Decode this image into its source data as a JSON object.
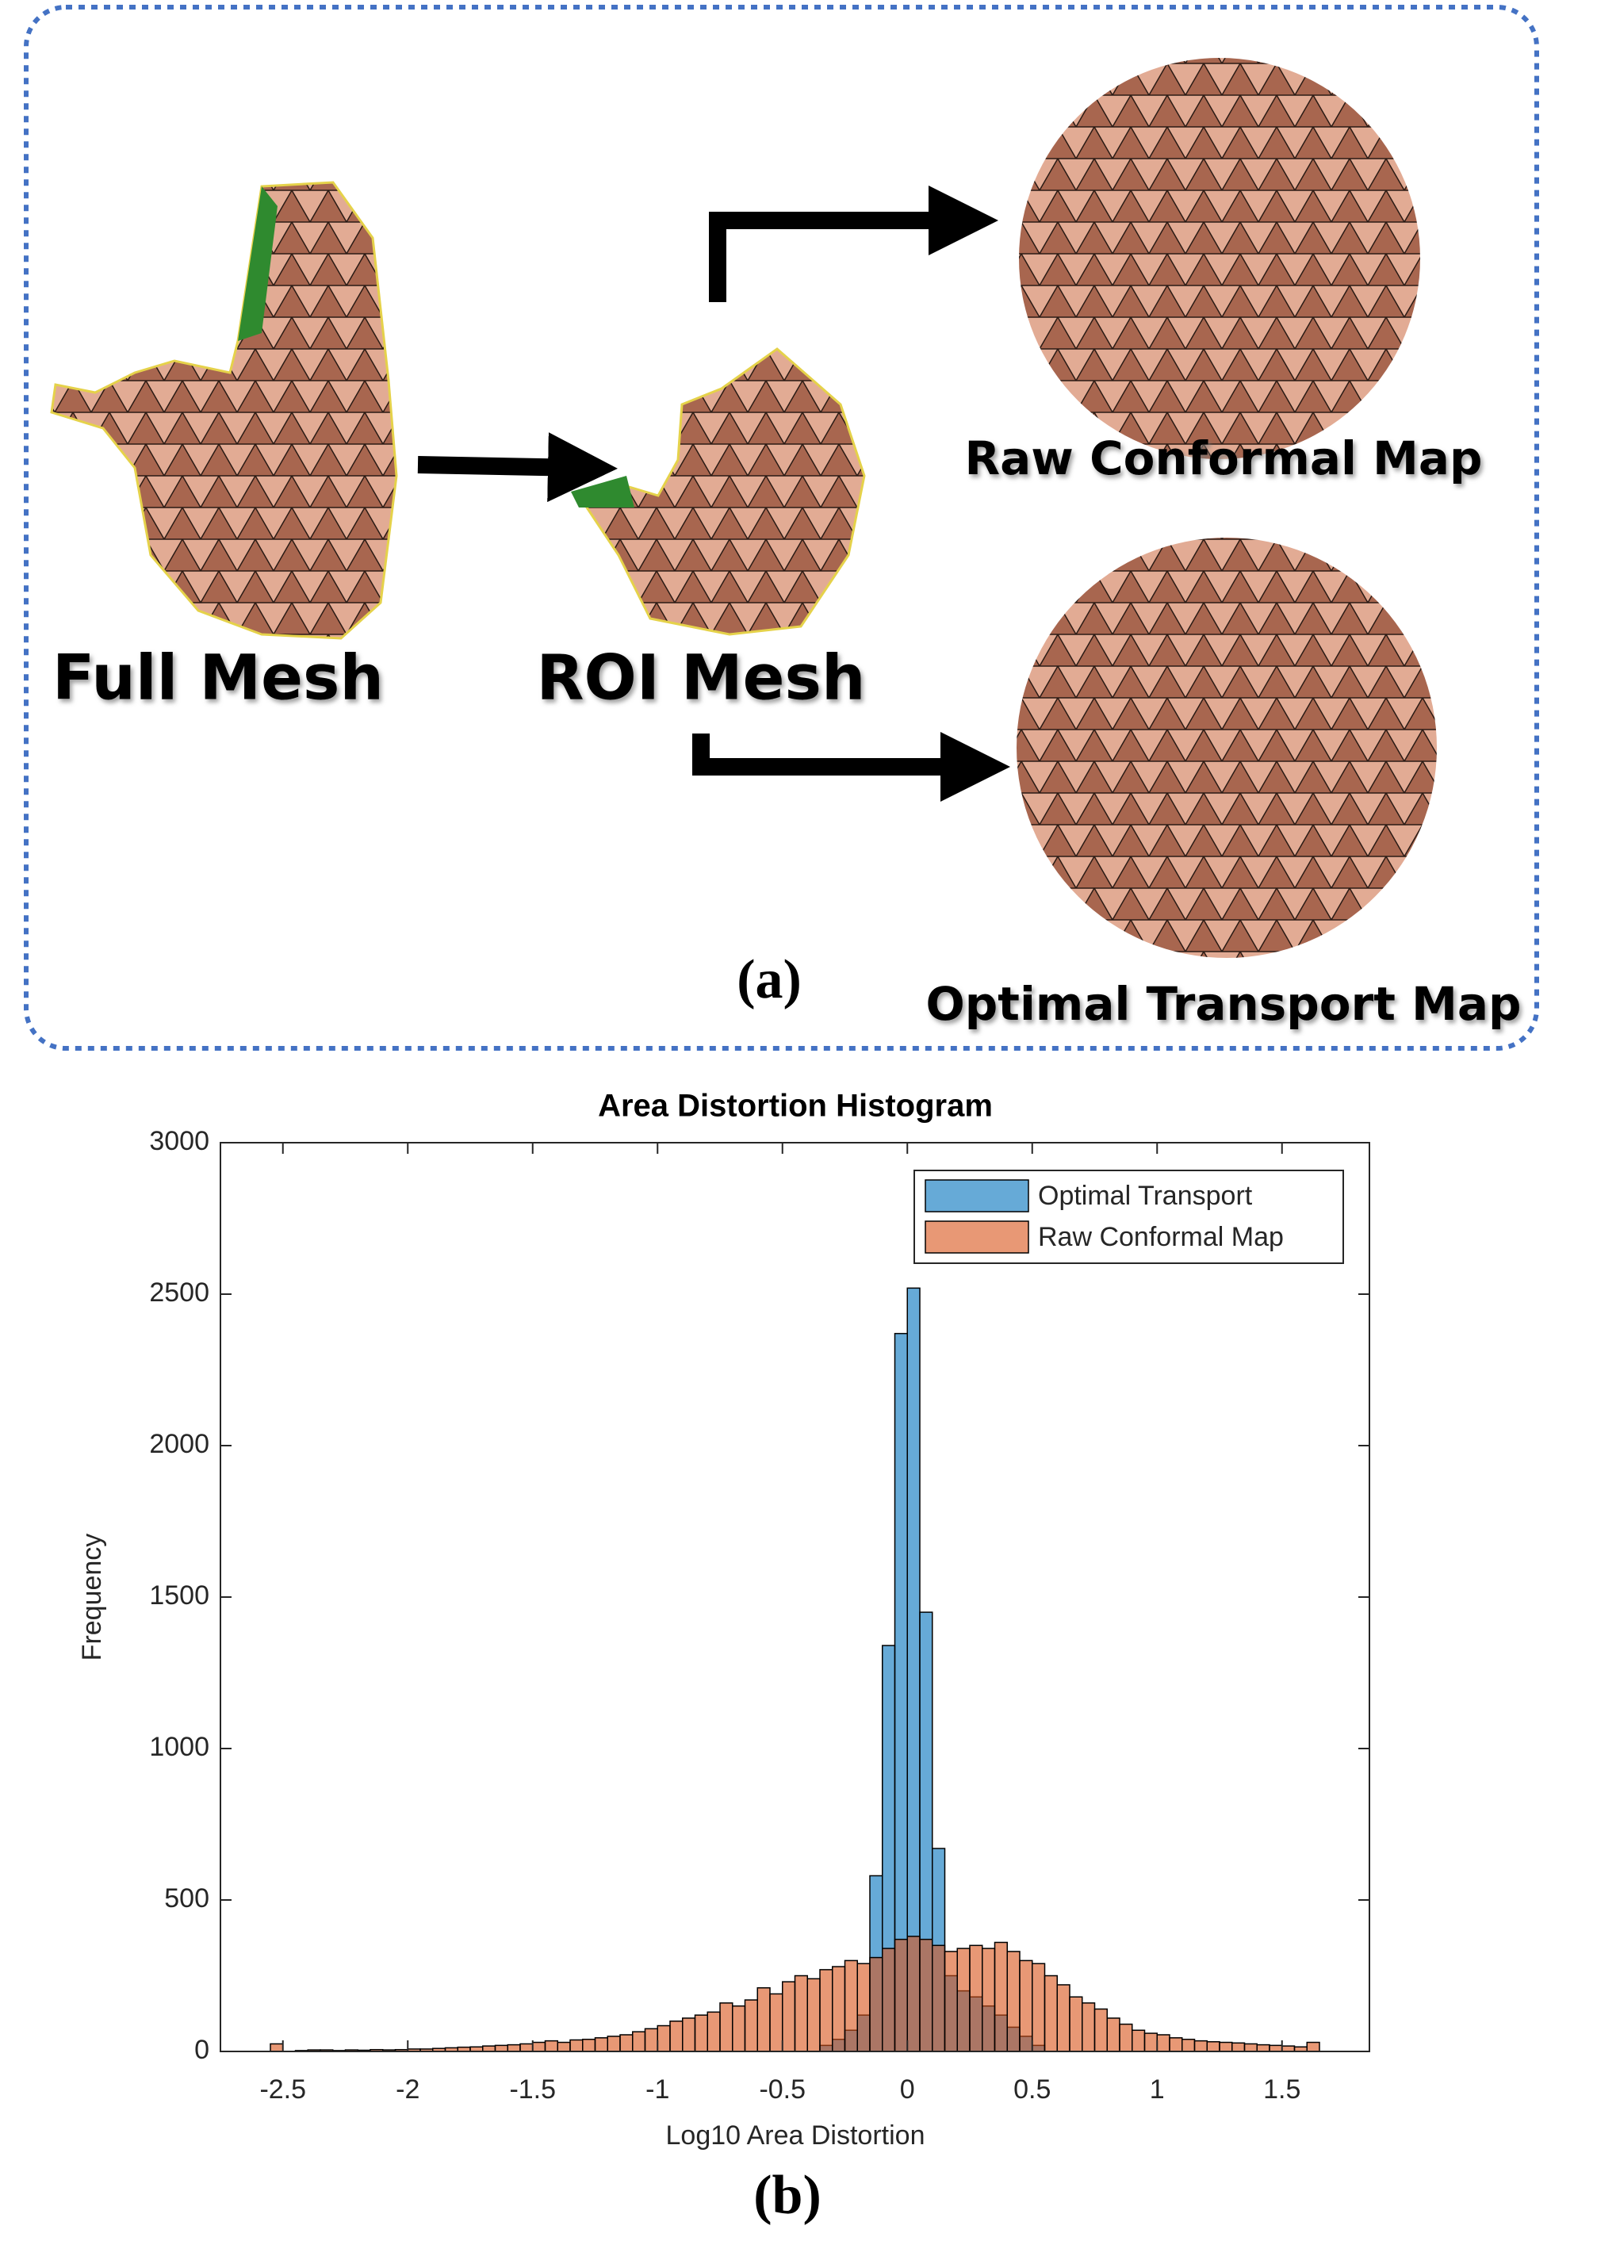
{
  "panel_a": {
    "full_mesh": "Full Mesh",
    "roi_mesh": "ROI Mesh",
    "raw_map": "Raw Conformal Map",
    "ot_map": "Optimal Transport Map",
    "caption": "(a)"
  },
  "chart_data": {
    "type": "histogram",
    "title": "Area Distortion Histogram",
    "x_label": "Log10 Area Distortion",
    "y_label": "Frequency",
    "bins": [
      -2.55,
      -2.5,
      -2.45,
      -2.4,
      -2.35,
      -2.3,
      -2.25,
      -2.2,
      -2.15,
      -2.1,
      -2.05,
      -2,
      -1.95,
      -1.9,
      -1.85,
      -1.8,
      -1.75,
      -1.7,
      -1.65,
      -1.6,
      -1.55,
      -1.5,
      -1.45,
      -1.4,
      -1.35,
      -1.3,
      -1.25,
      -1.2,
      -1.15,
      -1.1,
      -1.05,
      -1,
      -0.95,
      -0.9,
      -0.85,
      -0.8,
      -0.75,
      -0.7,
      -0.65,
      -0.6,
      -0.55,
      -0.5,
      -0.45,
      -0.4,
      -0.35,
      -0.3,
      -0.25,
      -0.2,
      -0.15,
      -0.1,
      -0.05,
      0,
      0.05,
      0.1,
      0.15,
      0.2,
      0.25,
      0.3,
      0.35,
      0.4,
      0.45,
      0.5,
      0.55,
      0.6,
      0.65,
      0.7,
      0.75,
      0.8,
      0.85,
      0.9,
      0.95,
      1,
      1.05,
      1.1,
      1.15,
      1.2,
      1.25,
      1.3,
      1.35,
      1.4,
      1.45,
      1.5,
      1.55,
      1.6,
      1.65
    ],
    "series": [
      {
        "name": "Optimal Transport",
        "color": "#0072bd",
        "values": [
          0,
          0,
          0,
          0,
          0,
          0,
          0,
          0,
          0,
          0,
          0,
          0,
          0,
          0,
          0,
          0,
          0,
          0,
          0,
          0,
          0,
          0,
          0,
          0,
          0,
          0,
          0,
          0,
          0,
          0,
          0,
          0,
          0,
          0,
          0,
          0,
          0,
          0,
          0,
          0,
          0,
          0,
          0,
          0,
          20,
          40,
          70,
          120,
          580,
          1340,
          2370,
          2520,
          1450,
          670,
          250,
          200,
          180,
          150,
          120,
          80,
          50,
          20,
          0,
          0,
          0,
          0,
          0,
          0,
          0,
          0,
          0,
          0,
          0,
          0,
          0,
          0,
          0,
          0,
          0,
          0,
          0,
          0,
          0,
          0
        ]
      },
      {
        "name": "Raw Conformal Map",
        "color": "#d95319",
        "values": [
          25,
          0,
          3,
          5,
          5,
          3,
          5,
          4,
          6,
          5,
          6,
          8,
          8,
          10,
          12,
          14,
          15,
          18,
          20,
          22,
          25,
          30,
          35,
          30,
          38,
          40,
          45,
          50,
          55,
          65,
          75,
          85,
          100,
          110,
          120,
          130,
          160,
          150,
          170,
          210,
          190,
          230,
          250,
          240,
          270,
          280,
          300,
          290,
          310,
          340,
          370,
          380,
          370,
          350,
          330,
          340,
          350,
          340,
          360,
          330,
          300,
          290,
          250,
          220,
          180,
          160,
          140,
          110,
          90,
          70,
          60,
          55,
          45,
          40,
          35,
          32,
          30,
          28,
          25,
          22,
          20,
          18,
          15,
          30
        ]
      }
    ],
    "face_alpha": 0.6,
    "xlim": [
      -2.75,
      1.85
    ],
    "xticks": [
      -2.5,
      -2,
      -1.5,
      -1,
      -0.5,
      0,
      0.5,
      1,
      1.5
    ],
    "ylim": [
      0,
      3000
    ],
    "yticks": [
      0,
      500,
      1000,
      1500,
      2000,
      2500,
      3000
    ],
    "legend": "northeast"
  },
  "caption_b": "(b)"
}
